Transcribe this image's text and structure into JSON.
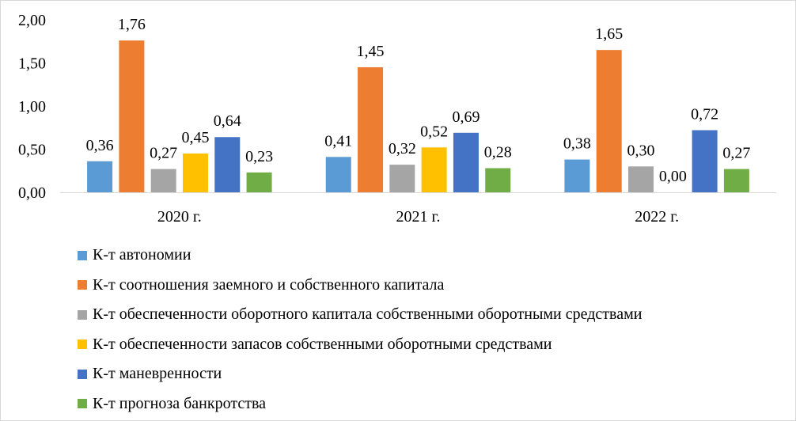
{
  "chart_data": {
    "type": "bar",
    "title": "",
    "xlabel": "",
    "ylabel": "",
    "categories": [
      "2020 г.",
      "2021 г.",
      "2022 г."
    ],
    "ylim": [
      0,
      2
    ],
    "yticks": [
      "0,00",
      "0,50",
      "1,00",
      "1,50",
      "2,00"
    ],
    "ytick_values": [
      0,
      0.5,
      1,
      1.5,
      2
    ],
    "grid": false,
    "legend_position": "bottom-left",
    "series": [
      {
        "name": "К-т автономии",
        "color": "#5B9BD5",
        "values": [
          0.36,
          0.41,
          0.38
        ],
        "labels": [
          "0,36",
          "0,41",
          "0,38"
        ]
      },
      {
        "name": "К-т соотношения заемного и собственного капитала",
        "color": "#ED7D31",
        "values": [
          1.76,
          1.45,
          1.65
        ],
        "labels": [
          "1,76",
          "1,45",
          "1,65"
        ]
      },
      {
        "name": "К-т обеспеченности оборотного капитала собственными оборотными средствами",
        "color": "#A5A5A5",
        "values": [
          0.27,
          0.32,
          0.3
        ],
        "labels": [
          "0,27",
          "0,32",
          "0,30"
        ]
      },
      {
        "name": "К-т обеспеченности запасов собственными оборотными средствами",
        "color": "#FFC000",
        "values": [
          0.45,
          0.52,
          0.0
        ],
        "labels": [
          "0,45",
          "0,52",
          "0,00"
        ]
      },
      {
        "name": "К-т маневренности",
        "color": "#4472C4",
        "values": [
          0.64,
          0.69,
          0.72
        ],
        "labels": [
          "0,64",
          "0,69",
          "0,72"
        ]
      },
      {
        "name": "К-т прогноза банкротства",
        "color": "#70AD47",
        "values": [
          0.23,
          0.28,
          0.27
        ],
        "labels": [
          "0,23",
          "0,28",
          "0,27"
        ]
      }
    ]
  }
}
